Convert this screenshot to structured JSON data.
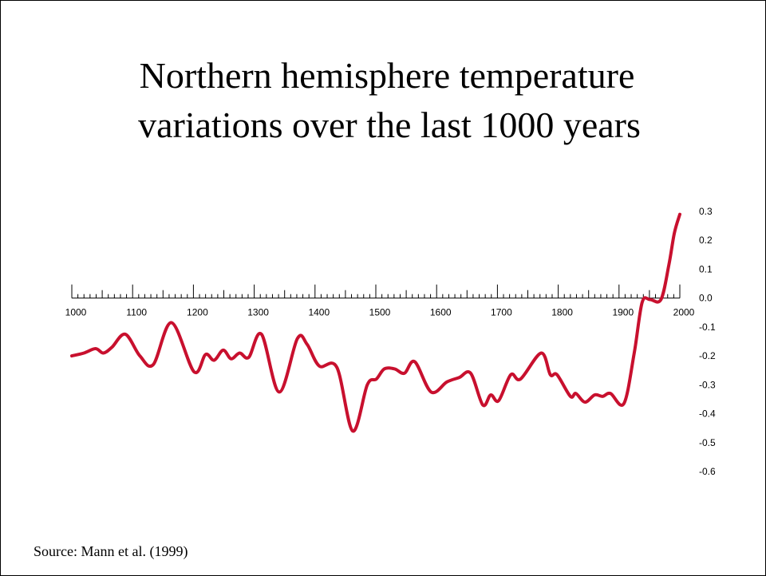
{
  "chart_data": {
    "type": "line",
    "title_lines": [
      "Northern hemisphere temperature",
      "variations over the last 1000 years"
    ],
    "source": "Source: Mann et al. (1999)",
    "x": [
      1000,
      1020,
      1039,
      1052,
      1066,
      1088,
      1112,
      1134,
      1164,
      1201,
      1220,
      1234,
      1249,
      1262,
      1276,
      1291,
      1312,
      1341,
      1371,
      1387,
      1407,
      1436,
      1462,
      1486,
      1501,
      1514,
      1531,
      1547,
      1564,
      1591,
      1617,
      1637,
      1656,
      1676,
      1689,
      1702,
      1722,
      1738,
      1772,
      1787,
      1798,
      1820,
      1829,
      1844,
      1860,
      1873,
      1886,
      1908,
      1925,
      1938,
      1951,
      1969,
      1982,
      1991,
      2000
    ],
    "series": [
      {
        "name": "Northern hemisphere temperature",
        "color": "#c8102e",
        "values": [
          -0.2,
          -0.19,
          -0.175,
          -0.19,
          -0.17,
          -0.125,
          -0.2,
          -0.23,
          -0.085,
          -0.255,
          -0.195,
          -0.215,
          -0.18,
          -0.21,
          -0.19,
          -0.205,
          -0.125,
          -0.325,
          -0.14,
          -0.16,
          -0.235,
          -0.24,
          -0.46,
          -0.3,
          -0.28,
          -0.245,
          -0.245,
          -0.26,
          -0.22,
          -0.325,
          -0.29,
          -0.275,
          -0.26,
          -0.37,
          -0.335,
          -0.355,
          -0.265,
          -0.28,
          -0.19,
          -0.265,
          -0.265,
          -0.34,
          -0.33,
          -0.36,
          -0.335,
          -0.34,
          -0.33,
          -0.365,
          -0.19,
          -0.015,
          -0.005,
          -0.005,
          0.115,
          0.225,
          0.29
        ]
      }
    ],
    "xlim": [
      1000,
      2000
    ],
    "xticks": [
      1000,
      1100,
      1200,
      1300,
      1400,
      1500,
      1600,
      1700,
      1800,
      1900,
      2000
    ],
    "ylim": [
      -0.6,
      0.3
    ],
    "yticks": [
      0.3,
      0.2,
      0.1,
      {
        "value": 0,
        "label": "0.0"
      },
      -0.1,
      -0.2,
      -0.3,
      -0.4,
      -0.5,
      -0.6
    ]
  }
}
